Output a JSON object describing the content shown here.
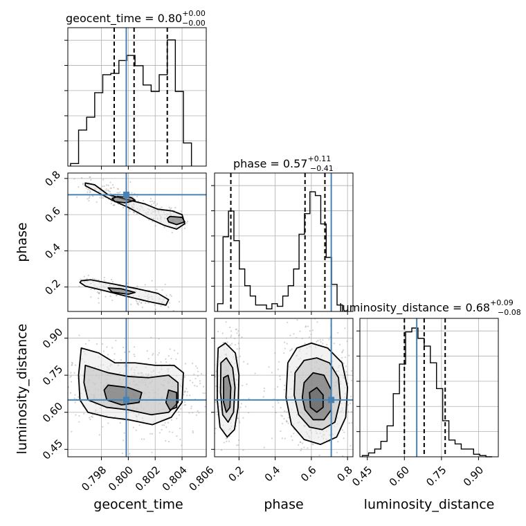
{
  "chart_data": {
    "type": "corner",
    "parameters": [
      {
        "key": "geocent_time",
        "label": "geocent_time",
        "title_name": "geocent_time",
        "median": "0.80",
        "err_plus": "+0.00",
        "err_minus": "−0.00",
        "range": [
          0.7955,
          0.8058
        ],
        "ticks": [
          "0.798",
          "0.800",
          "0.802",
          "0.804",
          "0.806"
        ],
        "tick_values": [
          0.798,
          0.8,
          0.802,
          0.804,
          0.806
        ],
        "truth": 0.79985,
        "quantiles": [
          0.79895,
          0.80043,
          0.8029
        ],
        "hist_edges": [
          0.7957,
          0.7963,
          0.7969,
          0.7975,
          0.7981,
          0.7987,
          0.7993,
          0.7999,
          0.8005,
          0.8011,
          0.8017,
          0.8023,
          0.8029,
          0.8035,
          0.8041,
          0.8047
        ],
        "hist_counts": [
          0.02,
          0.28,
          0.38,
          0.57,
          0.71,
          0.72,
          0.82,
          0.86,
          0.78,
          0.63,
          0.58,
          0.71,
          0.98,
          0.58,
          0.18
        ]
      },
      {
        "key": "phase",
        "label": "phase",
        "title_name": "phase",
        "median": "0.57",
        "err_plus": "+0.11",
        "err_minus": "−0.41",
        "range": [
          0.065,
          0.83
        ],
        "ticks": [
          "0.2",
          "0.4",
          "0.6",
          "0.8"
        ],
        "tick_values": [
          0.2,
          0.4,
          0.6,
          0.8
        ],
        "truth": 0.71,
        "quantiles": [
          0.155,
          0.565,
          0.675
        ],
        "hist_edges": [
          0.082,
          0.112,
          0.142,
          0.172,
          0.202,
          0.232,
          0.262,
          0.292,
          0.322,
          0.352,
          0.382,
          0.412,
          0.442,
          0.472,
          0.502,
          0.532,
          0.562,
          0.592,
          0.622,
          0.652,
          0.682,
          0.712,
          0.742,
          0.772
        ],
        "hist_counts": [
          0.06,
          0.58,
          0.78,
          0.55,
          0.33,
          0.2,
          0.12,
          0.05,
          0.05,
          0.02,
          0.06,
          0.04,
          0.12,
          0.2,
          0.33,
          0.6,
          0.76,
          0.93,
          0.9,
          0.68,
          0.42,
          0.21,
          0.05
        ]
      },
      {
        "key": "luminosity_distance",
        "label": "luminosity_distance",
        "title_name": "luminosity_distance",
        "median": "0.68",
        "err_plus": "+0.09",
        "err_minus": "−0.08",
        "range": [
          0.42,
          0.98
        ],
        "ticks": [
          "0.45",
          "0.60",
          "0.75",
          "0.90"
        ],
        "tick_values": [
          0.45,
          0.6,
          0.75,
          0.9
        ],
        "truth": 0.65,
        "quantiles": [
          0.6,
          0.68,
          0.765
        ],
        "hist_edges": [
          0.43,
          0.455,
          0.48,
          0.505,
          0.53,
          0.555,
          0.58,
          0.605,
          0.63,
          0.655,
          0.68,
          0.705,
          0.73,
          0.755,
          0.78,
          0.805,
          0.83,
          0.855,
          0.88,
          0.905,
          0.93,
          0.955
        ],
        "hist_counts": [
          0.01,
          0.03,
          0.06,
          0.12,
          0.24,
          0.49,
          0.72,
          0.97,
          1.0,
          0.92,
          0.86,
          0.73,
          0.53,
          0.28,
          0.13,
          0.1,
          0.06,
          0.06,
          0.02,
          0.01,
          0.0
        ]
      }
    ],
    "pairs": [
      {
        "x": "geocent_time",
        "y": "phase",
        "levels": [
          {
            "level": "outer",
            "path": [
              [
                0.7968,
                0.775
              ],
              [
                0.7975,
                0.765
              ],
              [
                0.7985,
                0.71
              ],
              [
                0.7998,
                0.685
              ],
              [
                0.8012,
                0.66
              ],
              [
                0.8022,
                0.63
              ],
              [
                0.8033,
                0.62
              ],
              [
                0.804,
                0.6
              ],
              [
                0.8042,
                0.55
              ],
              [
                0.8036,
                0.52
              ],
              [
                0.8027,
                0.54
              ],
              [
                0.8015,
                0.58
              ],
              [
                0.8,
                0.64
              ],
              [
                0.7988,
                0.68
              ],
              [
                0.7978,
                0.72
              ],
              [
                0.7968,
                0.76
              ]
            ]
          },
          {
            "level": "outer",
            "path": [
              [
                0.7965,
                0.235
              ],
              [
                0.7972,
                0.24
              ],
              [
                0.799,
                0.215
              ],
              [
                0.8007,
                0.19
              ],
              [
                0.8022,
                0.165
              ],
              [
                0.803,
                0.13
              ],
              [
                0.8028,
                0.1
              ],
              [
                0.8015,
                0.12
              ],
              [
                0.7998,
                0.15
              ],
              [
                0.7982,
                0.18
              ],
              [
                0.7968,
                0.205
              ],
              [
                0.7964,
                0.225
              ]
            ]
          },
          {
            "level": "inner",
            "path": [
              [
                0.7992,
                0.7
              ],
              [
                0.8002,
                0.695
              ],
              [
                0.8005,
                0.68
              ],
              [
                0.7998,
                0.665
              ],
              [
                0.799,
                0.672
              ],
              [
                0.7988,
                0.69
              ]
            ]
          },
          {
            "level": "inner",
            "path": [
              [
                0.8031,
                0.59
              ],
              [
                0.804,
                0.585
              ],
              [
                0.8042,
                0.56
              ],
              [
                0.8036,
                0.545
              ],
              [
                0.803,
                0.56
              ],
              [
                0.8029,
                0.578
              ]
            ]
          },
          {
            "level": "inner",
            "path": [
              [
                0.7985,
                0.195
              ],
              [
                0.7995,
                0.19
              ],
              [
                0.8005,
                0.17
              ],
              [
                0.8,
                0.16
              ],
              [
                0.7988,
                0.172
              ]
            ]
          }
        ]
      },
      {
        "x": "geocent_time",
        "y": "luminosity_distance",
        "levels": [
          {
            "level": "outer",
            "path": [
              [
                0.7965,
                0.86
              ],
              [
                0.7978,
                0.84
              ],
              [
                0.799,
                0.8
              ],
              [
                0.8005,
                0.8
              ],
              [
                0.802,
                0.79
              ],
              [
                0.8034,
                0.79
              ],
              [
                0.8041,
                0.76
              ],
              [
                0.804,
                0.64
              ],
              [
                0.8032,
                0.58
              ],
              [
                0.8018,
                0.55
              ],
              [
                0.8,
                0.57
              ],
              [
                0.7985,
                0.58
              ],
              [
                0.797,
                0.6
              ],
              [
                0.7964,
                0.65
              ],
              [
                0.7963,
                0.75
              ]
            ]
          },
          {
            "level": "mid",
            "path": [
              [
                0.7968,
                0.79
              ],
              [
                0.7985,
                0.76
              ],
              [
                0.8,
                0.745
              ],
              [
                0.8015,
                0.74
              ],
              [
                0.803,
                0.75
              ],
              [
                0.8037,
                0.72
              ],
              [
                0.8037,
                0.64
              ],
              [
                0.803,
                0.6
              ],
              [
                0.8017,
                0.59
              ],
              [
                0.8,
                0.61
              ],
              [
                0.7984,
                0.62
              ],
              [
                0.797,
                0.65
              ],
              [
                0.7967,
                0.72
              ]
            ]
          },
          {
            "level": "inner",
            "path": [
              [
                0.7985,
                0.71
              ],
              [
                0.8,
                0.7
              ],
              [
                0.801,
                0.68
              ],
              [
                0.8008,
                0.64
              ],
              [
                0.7995,
                0.63
              ],
              [
                0.7984,
                0.65
              ],
              [
                0.7982,
                0.69
              ]
            ]
          },
          {
            "level": "inner",
            "path": [
              [
                0.803,
                0.69
              ],
              [
                0.8036,
                0.68
              ],
              [
                0.8036,
                0.62
              ],
              [
                0.8031,
                0.61
              ],
              [
                0.8028,
                0.64
              ]
            ]
          }
        ]
      },
      {
        "x": "phase",
        "y": "luminosity_distance",
        "levels": [
          {
            "level": "outer",
            "path": [
              [
                0.085,
                0.86
              ],
              [
                0.125,
                0.88
              ],
              [
                0.18,
                0.84
              ],
              [
                0.2,
                0.75
              ],
              [
                0.195,
                0.62
              ],
              [
                0.175,
                0.53
              ],
              [
                0.135,
                0.5
              ],
              [
                0.095,
                0.54
              ],
              [
                0.08,
                0.65
              ],
              [
                0.08,
                0.77
              ]
            ]
          },
          {
            "level": "mid",
            "path": [
              [
                0.1,
                0.8
              ],
              [
                0.13,
                0.82
              ],
              [
                0.165,
                0.78
              ],
              [
                0.178,
                0.7
              ],
              [
                0.17,
                0.6
              ],
              [
                0.14,
                0.56
              ],
              [
                0.11,
                0.59
              ],
              [
                0.098,
                0.68
              ]
            ]
          },
          {
            "level": "inner",
            "path": [
              [
                0.115,
                0.74
              ],
              [
                0.14,
                0.75
              ],
              [
                0.155,
                0.7
              ],
              [
                0.15,
                0.62
              ],
              [
                0.13,
                0.6
              ],
              [
                0.115,
                0.64
              ]
            ]
          },
          {
            "level": "outer",
            "path": [
              [
                0.47,
                0.8
              ],
              [
                0.52,
                0.86
              ],
              [
                0.6,
                0.88
              ],
              [
                0.69,
                0.86
              ],
              [
                0.77,
                0.8
              ],
              [
                0.8,
                0.7
              ],
              [
                0.79,
                0.58
              ],
              [
                0.74,
                0.5
              ],
              [
                0.65,
                0.47
              ],
              [
                0.56,
                0.49
              ],
              [
                0.49,
                0.55
              ],
              [
                0.46,
                0.66
              ]
            ]
          },
          {
            "level": "mid",
            "path": [
              [
                0.51,
                0.76
              ],
              [
                0.56,
                0.81
              ],
              [
                0.63,
                0.82
              ],
              [
                0.7,
                0.8
              ],
              [
                0.75,
                0.74
              ],
              [
                0.76,
                0.65
              ],
              [
                0.73,
                0.56
              ],
              [
                0.66,
                0.53
              ],
              [
                0.59,
                0.54
              ],
              [
                0.53,
                0.59
              ],
              [
                0.505,
                0.67
              ]
            ]
          },
          {
            "level": "inner",
            "path": [
              [
                0.56,
                0.72
              ],
              [
                0.61,
                0.76
              ],
              [
                0.67,
                0.75
              ],
              [
                0.71,
                0.69
              ],
              [
                0.71,
                0.61
              ],
              [
                0.67,
                0.57
              ],
              [
                0.61,
                0.57
              ],
              [
                0.565,
                0.61
              ],
              [
                0.55,
                0.66
              ]
            ]
          },
          {
            "level": "inner",
            "path": [
              [
                0.59,
                0.68
              ],
              [
                0.63,
                0.7
              ],
              [
                0.665,
                0.67
              ],
              [
                0.665,
                0.62
              ],
              [
                0.63,
                0.6
              ],
              [
                0.595,
                0.62
              ]
            ]
          }
        ]
      }
    ],
    "truth_color": "#4682b4",
    "hist_color": "#000000",
    "quantile_style": "dashed",
    "grid": true
  }
}
